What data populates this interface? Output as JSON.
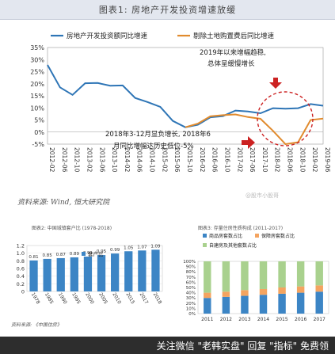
{
  "figure1": {
    "title": "图表1: 房地产开发投资增速放缓",
    "source": "资料来源: Wind, 恒大研究院",
    "annotations": {
      "right_1": "2019年以来增幅趋稳,",
      "right_2": "总体呈缓慢增长",
      "mid_1": "2018年3-12月显负增长, 2018年6",
      "mid_2": "月同比增幅达历史低位-5%"
    }
  },
  "figure2": {
    "title": "图表2: 中国城镇套户比 (1978-2018)",
    "source": "资料来源: 《中国住房》"
  },
  "figure3": {
    "title": "图表3: 存量住房性质构成 (2011-2017)"
  },
  "footer": {
    "text": "关注微信 \"老韩实盘\" 回复 \"指标\" 免费领",
    "watermark": "@股市小股哥"
  },
  "colors": {
    "series1": "#2e75b6",
    "series2": "#e18b2e",
    "bar_blue": "#3c85c5",
    "stack_green": "#a9d18e",
    "stack_orange": "#f4a460",
    "highlight": "#cc2222"
  },
  "chart_data": [
    {
      "type": "line",
      "ylim": [
        -5,
        35
      ],
      "yticks": [
        "-5%",
        "0%",
        "5%",
        "10%",
        "15%",
        "20%",
        "25%",
        "30%",
        "35%"
      ],
      "x": [
        "2012-02",
        "2012-06",
        "2012-10",
        "2013-02",
        "2013-06",
        "2013-10",
        "2014-02",
        "2014-06",
        "2014-10",
        "2015-02",
        "2015-06",
        "2015-10",
        "2016-02",
        "2016-06",
        "2016-10",
        "2017-02",
        "2017-06",
        "2017-10",
        "2018-02",
        "2018-06",
        "2018-10",
        "2019-02",
        "2019-06"
      ],
      "series": [
        {
          "name": "房地产开发投资额同比增速",
          "values": [
            27.8,
            18.5,
            15.4,
            20.2,
            20.3,
            19.2,
            19.3,
            14.1,
            12.4,
            10.4,
            4.6,
            2.0,
            3.0,
            6.1,
            6.6,
            8.9,
            8.5,
            7.8,
            9.9,
            9.7,
            9.9,
            11.6,
            10.9
          ]
        },
        {
          "name": "剔除土地购置费后同比增速",
          "values": [
            null,
            null,
            null,
            null,
            null,
            null,
            null,
            null,
            null,
            null,
            null,
            2.0,
            3.5,
            6.5,
            7.0,
            7.3,
            6.2,
            5.5,
            0.5,
            -5.0,
            -4.2,
            5.0,
            5.6
          ]
        }
      ]
    },
    {
      "type": "bar",
      "categories": [
        "1978",
        "1985",
        "1990",
        "1995",
        "2000",
        "2005",
        "2010",
        "2015",
        "2017",
        "2018"
      ],
      "series": [
        {
          "name": "套户比",
          "values": [
            0.81,
            0.85,
            0.87,
            0.89,
            0.91,
            0.95,
            0.99,
            1.05,
            1.07,
            1.09
          ]
        }
      ],
      "ylim": [
        0,
        1.2
      ],
      "yticks": [
        "0",
        "0.2",
        "0.4",
        "0.6",
        "0.8",
        "1.0",
        "1.2"
      ]
    },
    {
      "type": "bar",
      "categories": [
        "2011",
        "2012",
        "2013",
        "2014",
        "2015",
        "2016",
        "2017"
      ],
      "legend": [
        "商品房套数占比",
        "保障房套数占比",
        "自建房及其他套数占比"
      ],
      "series": [
        {
          "name": "商品房套数占比",
          "values": [
            30,
            32,
            34,
            36,
            38,
            40,
            42
          ]
        },
        {
          "name": "保障房套数占比",
          "values": [
            10,
            10,
            11,
            11,
            12,
            12,
            12
          ]
        },
        {
          "name": "自建房及其他套数占比",
          "values": [
            60,
            58,
            55,
            53,
            50,
            48,
            46
          ]
        }
      ],
      "ylim": [
        0,
        100
      ],
      "yticks": [
        "0%",
        "10%",
        "20%",
        "30%",
        "40%",
        "50%",
        "60%",
        "70%",
        "80%",
        "90%",
        "100%"
      ]
    }
  ]
}
